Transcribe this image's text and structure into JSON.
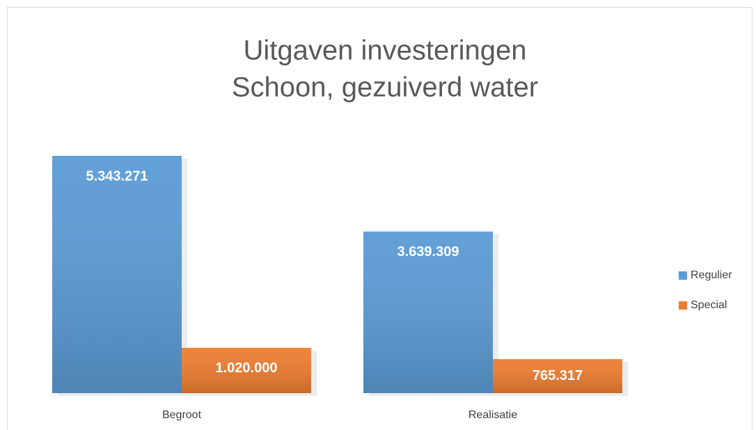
{
  "chart_data": {
    "type": "bar",
    "title": [
      "Uitgaven investeringen",
      "Schoon, gezuiverd water"
    ],
    "categories": [
      "Begroot",
      "Realisatie"
    ],
    "series": [
      {
        "name": "Regulier",
        "color": "#5b9bd5",
        "values": [
          5343271,
          3639309
        ],
        "value_labels": [
          "5.343.271",
          "3.639.309"
        ]
      },
      {
        "name": "Special",
        "color": "#ed7d31",
        "values": [
          1020000,
          765317
        ],
        "value_labels": [
          "1.020.000",
          "765.317"
        ]
      }
    ],
    "legend": "right"
  }
}
